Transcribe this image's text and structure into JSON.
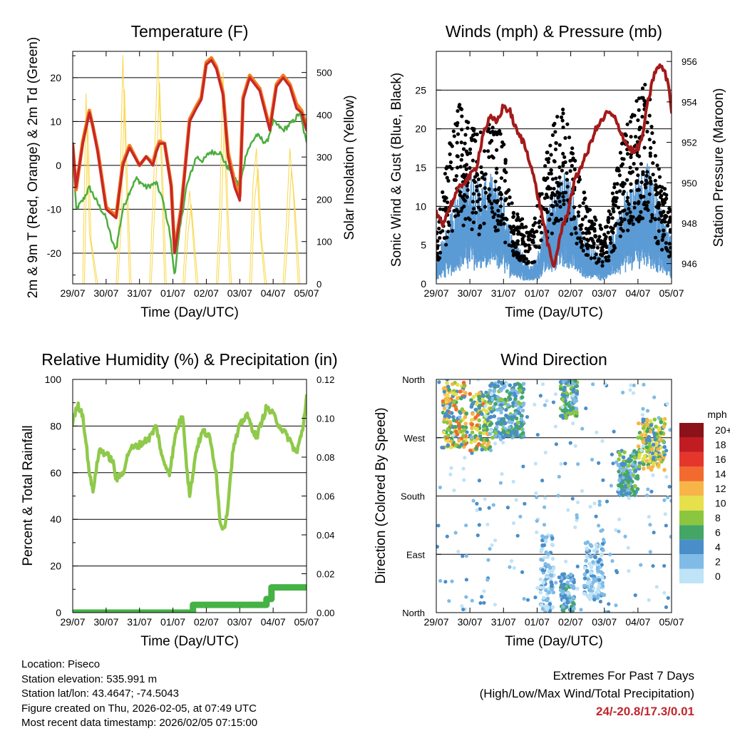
{
  "colors": {
    "temp_red": "#c62828",
    "temp_orange": "#f47c20",
    "dewpoint_green": "#4cae3f",
    "solar_yellow": "#f9d74a",
    "wind_blue": "#5b9bd5",
    "gust_black": "#000000",
    "pressure_maroon": "#a31a1a",
    "rh_green": "#8fc94a",
    "precip_green": "#44b244",
    "extremes_red": "#c0272d"
  },
  "time_ticks": [
    "29/07",
    "30/07",
    "31/07",
    "01/07",
    "02/07",
    "03/07",
    "04/07",
    "05/07"
  ],
  "chart_data": [
    {
      "id": "temperature",
      "type": "line",
      "title": "Temperature (F)",
      "xlabel": "Time (Day/UTC)",
      "ylabel": "2m & 9m T (Red, Orange) & 2m Td (Green)",
      "y2label": "Solar Insolation (Yellow)",
      "ylim": [
        -27,
        26
      ],
      "yticks": [
        -20,
        -10,
        0,
        10,
        20
      ],
      "y2lim": [
        0,
        550
      ],
      "y2ticks": [
        0,
        100,
        200,
        300,
        400,
        500
      ],
      "x_days": [
        0,
        7
      ],
      "series": [
        {
          "name": "2m T",
          "color": "#c62828",
          "width": 4,
          "x": [
            0,
            0.1,
            0.3,
            0.5,
            0.6,
            0.75,
            1.0,
            1.3,
            1.5,
            1.7,
            2.0,
            2.2,
            2.4,
            2.5,
            2.6,
            2.75,
            2.95,
            3.05,
            3.25,
            3.5,
            3.7,
            3.85,
            4.0,
            4.15,
            4.3,
            4.5,
            4.65,
            4.85,
            5.0,
            5.1,
            5.3,
            5.6,
            5.9,
            6.1,
            6.3,
            6.5,
            6.7,
            6.85,
            7.0
          ],
          "y": [
            5,
            -5,
            5,
            12,
            9,
            3,
            -10,
            -12,
            0,
            4,
            0,
            2,
            0,
            3,
            5,
            5,
            -5,
            -20,
            -10,
            10,
            13,
            15,
            23,
            24,
            22,
            16,
            2,
            -5,
            -8,
            15,
            20,
            17,
            8,
            18,
            20,
            18,
            13,
            12,
            8
          ]
        },
        {
          "name": "9m T",
          "color": "#f47c20",
          "width": 2,
          "x": [
            0,
            0.1,
            0.3,
            0.5,
            0.6,
            0.75,
            1.0,
            1.3,
            1.5,
            1.7,
            2.0,
            2.2,
            2.4,
            2.5,
            2.6,
            2.75,
            2.95,
            3.05,
            3.25,
            3.5,
            3.7,
            3.85,
            4.0,
            4.15,
            4.3,
            4.5,
            4.65,
            4.85,
            5.0,
            5.1,
            5.3,
            5.6,
            5.9,
            6.1,
            6.3,
            6.5,
            6.7,
            6.85,
            7.0
          ],
          "y": [
            4.5,
            -5.5,
            5.5,
            12.5,
            9,
            3.5,
            -9.5,
            -11.5,
            0.5,
            4.5,
            0,
            2,
            0.5,
            3.5,
            5.5,
            5,
            -4.5,
            -19.5,
            -9.5,
            10.5,
            13.5,
            15.5,
            23.5,
            24.5,
            22.5,
            16.5,
            3,
            -4,
            -7,
            15.5,
            20.5,
            17.5,
            8.5,
            18.5,
            20.5,
            18.5,
            14,
            12.5,
            9
          ]
        },
        {
          "name": "2m Td",
          "color": "#4cae3f",
          "width": 2.5,
          "x": [
            0,
            0.1,
            0.3,
            0.5,
            0.7,
            1.0,
            1.2,
            1.3,
            1.5,
            1.7,
            1.9,
            2.2,
            2.5,
            2.7,
            2.9,
            3.0,
            3.05,
            3.2,
            3.4,
            3.7,
            3.9,
            4.1,
            4.4,
            4.6,
            4.8,
            5.0,
            5.2,
            5.5,
            5.8,
            6.0,
            6.3,
            6.6,
            6.8,
            7.0
          ],
          "y": [
            3,
            -10,
            -8,
            -5,
            -8,
            -12,
            -18,
            -19,
            -10,
            -6,
            -3,
            -5,
            -4,
            -8,
            -15,
            -22,
            -25,
            -15,
            -5,
            2,
            1,
            3,
            3,
            0,
            -2,
            -5,
            3,
            7,
            5,
            10,
            8,
            10,
            12,
            5
          ]
        },
        {
          "name": "Solar Insolation",
          "axis": "y2",
          "color": "#f9d74a",
          "width": 1,
          "x": [
            0,
            0.3,
            0.4,
            0.5,
            0.7,
            1.3,
            1.4,
            1.5,
            1.6,
            1.7,
            2.3,
            2.45,
            2.55,
            2.75,
            3.3,
            3.4,
            3.5,
            3.7,
            4.3,
            4.4,
            4.5,
            4.6,
            4.7,
            5.3,
            5.4,
            5.5,
            5.6,
            5.75,
            6.3,
            6.4,
            6.5,
            6.6,
            6.75
          ],
          "y": [
            0,
            0,
            450,
            120,
            0,
            0,
            160,
            540,
            250,
            0,
            0,
            300,
            560,
            0,
            0,
            140,
            220,
            0,
            0,
            180,
            500,
            200,
            0,
            0,
            240,
            320,
            130,
            0,
            0,
            150,
            320,
            220,
            0
          ]
        }
      ]
    },
    {
      "id": "winds",
      "type": "scatter",
      "title": "Winds (mph) & Pressure (mb)",
      "xlabel": "Time (Day/UTC)",
      "ylabel": "Sonic Wind & Gust (Blue, Black)",
      "y2label": "Station Pressure (Maroon)",
      "ylim": [
        0,
        30
      ],
      "yticks": [
        0,
        5,
        10,
        15,
        20,
        25
      ],
      "y2lim": [
        945,
        956.5
      ],
      "y2ticks": [
        946,
        948,
        950,
        952,
        954,
        956
      ],
      "x_days": [
        0,
        7
      ],
      "series": [
        {
          "name": "Sonic Wind",
          "color": "#5b9bd5",
          "envelope_x": [
            0,
            0.3,
            0.6,
            1.0,
            1.3,
            1.6,
            2.0,
            2.2,
            2.5,
            2.8,
            3.0,
            3.3,
            3.5,
            3.8,
            4.0,
            4.3,
            4.6,
            5.0,
            5.3,
            5.6,
            6.0,
            6.3,
            6.6,
            7.0
          ],
          "envelope_y": [
            3,
            6,
            10,
            13,
            11,
            12,
            10,
            6,
            4,
            2,
            3,
            8,
            10,
            13,
            11,
            6,
            4,
            3,
            6,
            10,
            12,
            14,
            9,
            5
          ]
        },
        {
          "name": "Gust",
          "color": "#000000",
          "envelope_x": [
            0,
            0.3,
            0.6,
            1.0,
            1.3,
            1.6,
            2.0,
            2.2,
            2.5,
            2.8,
            3.0,
            3.3,
            3.5,
            3.8,
            4.0,
            4.3,
            4.6,
            5.0,
            5.3,
            5.6,
            6.0,
            6.3,
            6.6,
            7.0
          ],
          "envelope_y": [
            6,
            14,
            22,
            19,
            18,
            21,
            17,
            10,
            8,
            6,
            9,
            16,
            19,
            21,
            18,
            12,
            9,
            6,
            12,
            18,
            22,
            24,
            14,
            9
          ]
        },
        {
          "name": "Station Pressure",
          "axis": "y2",
          "color": "#a31a1a",
          "x": [
            0,
            0.2,
            0.4,
            0.6,
            0.8,
            1.0,
            1.2,
            1.4,
            1.6,
            1.8,
            2.0,
            2.2,
            2.4,
            2.6,
            2.8,
            3.0,
            3.2,
            3.4,
            3.5,
            3.7,
            3.9,
            4.1,
            4.3,
            4.5,
            4.7,
            4.9,
            5.1,
            5.3,
            5.5,
            5.7,
            5.9,
            6.1,
            6.3,
            6.5,
            6.7,
            6.9,
            7.0
          ],
          "y": [
            948.5,
            948,
            948.8,
            949.5,
            950,
            950.3,
            950.8,
            952.5,
            953.2,
            953,
            953.8,
            953.5,
            952.5,
            952,
            951,
            949.5,
            948,
            946.3,
            945.8,
            947.5,
            948.5,
            950,
            950.8,
            951.5,
            952.5,
            953,
            953.5,
            953.2,
            952.5,
            951.8,
            951.5,
            952,
            954,
            955.5,
            955.8,
            955,
            953.5
          ]
        }
      ]
    },
    {
      "id": "humidity",
      "type": "line",
      "title": "Relative Humidity (%) & Precipitation (in)",
      "xlabel": "Time (Day/UTC)",
      "ylabel": "Percent & Total Rainfall",
      "ylim": [
        0,
        100
      ],
      "yticks": [
        0,
        20,
        40,
        60,
        80,
        100
      ],
      "y2lim": [
        0,
        0.12
      ],
      "y2ticks": [
        "0.00",
        "0.02",
        "0.04",
        "0.06",
        "0.08",
        "0.10",
        "0.12"
      ],
      "x_days": [
        0,
        7
      ],
      "series": [
        {
          "name": "Relative Humidity",
          "color": "#8fc94a",
          "width": 4,
          "x": [
            0,
            0.15,
            0.3,
            0.5,
            0.6,
            0.8,
            1.0,
            1.2,
            1.3,
            1.5,
            1.7,
            2.0,
            2.3,
            2.5,
            2.7,
            2.9,
            3.1,
            3.3,
            3.4,
            3.5,
            3.7,
            3.9,
            4.1,
            4.3,
            4.4,
            4.5,
            4.6,
            4.8,
            5.0,
            5.2,
            5.5,
            5.8,
            6.0,
            6.2,
            6.5,
            6.7,
            6.9,
            7.0
          ],
          "y": [
            82,
            89,
            85,
            60,
            52,
            70,
            68,
            65,
            57,
            60,
            70,
            72,
            75,
            80,
            65,
            60,
            78,
            85,
            65,
            50,
            70,
            78,
            75,
            60,
            40,
            36,
            40,
            70,
            80,
            85,
            75,
            88,
            85,
            80,
            74,
            68,
            80,
            93
          ]
        },
        {
          "name": "Total Precipitation",
          "axis": "y2",
          "color": "#44b244",
          "width": 9,
          "x": [
            0,
            3.6,
            3.6,
            5.8,
            5.8,
            5.95,
            5.95,
            7.0
          ],
          "y": [
            0,
            0,
            0.004,
            0.004,
            0.007,
            0.007,
            0.013,
            0.013
          ]
        }
      ]
    },
    {
      "id": "direction",
      "type": "scatter",
      "title": "Wind Direction",
      "xlabel": "Time (Day/UTC)",
      "ylabel": "Direction (Colored By Speed)",
      "ylim": [
        0,
        360
      ],
      "yticks": [
        "North",
        "East",
        "South",
        "West",
        "North"
      ],
      "x_days": [
        0,
        7
      ],
      "colorbar_title": "mph",
      "colorbar_labels": [
        "0",
        "2",
        "4",
        "6",
        "8",
        "10",
        "12",
        "14",
        "16",
        "18",
        "20+"
      ],
      "colorbar_colors": [
        "#bfe3f7",
        "#7fbbe6",
        "#4a8ec9",
        "#43a667",
        "#8cc63f",
        "#e6e04a",
        "#f8b547",
        "#f26a2e",
        "#e4362b",
        "#c21c23",
        "#8b1218"
      ],
      "clusters": [
        {
          "x": [
            0.2,
            0.9
          ],
          "dir": [
            255,
            355
          ],
          "speed": [
            5,
            16
          ]
        },
        {
          "x": [
            1.0,
            1.6
          ],
          "dir": [
            250,
            340
          ],
          "speed": [
            4,
            15
          ]
        },
        {
          "x": [
            1.6,
            2.6
          ],
          "dir": [
            270,
            355
          ],
          "speed": [
            2,
            9
          ]
        },
        {
          "x": [
            3.1,
            3.5
          ],
          "dir": [
            0,
            120
          ],
          "speed": [
            0,
            5
          ]
        },
        {
          "x": [
            3.7,
            4.2
          ],
          "dir": [
            300,
            360
          ],
          "speed": [
            3,
            10
          ]
        },
        {
          "x": [
            3.7,
            4.1
          ],
          "dir": [
            0,
            60
          ],
          "speed": [
            2,
            7
          ]
        },
        {
          "x": [
            4.4,
            5.0
          ],
          "dir": [
            20,
            110
          ],
          "speed": [
            0,
            5
          ]
        },
        {
          "x": [
            5.4,
            6.0
          ],
          "dir": [
            180,
            250
          ],
          "speed": [
            3,
            9
          ]
        },
        {
          "x": [
            6.0,
            6.8
          ],
          "dir": [
            220,
            300
          ],
          "speed": [
            4,
            14
          ]
        }
      ]
    }
  ],
  "footer": {
    "location": "Location: Piseco",
    "elevation": "Station elevation: 535.991 m",
    "latlon": "Station lat/lon: 43.4647; -74.5043",
    "created": "Figure created on Thu, 2026-02-05, at 07:49 UTC",
    "recent": "Most recent data timestamp: 2026/02/05 07:15:00"
  },
  "extremes": {
    "title": "Extremes For Past 7 Days",
    "subtitle": "(High/Low/Max Wind/Total Precipitation)",
    "values": "24/-20.8/17.3/0.01"
  }
}
